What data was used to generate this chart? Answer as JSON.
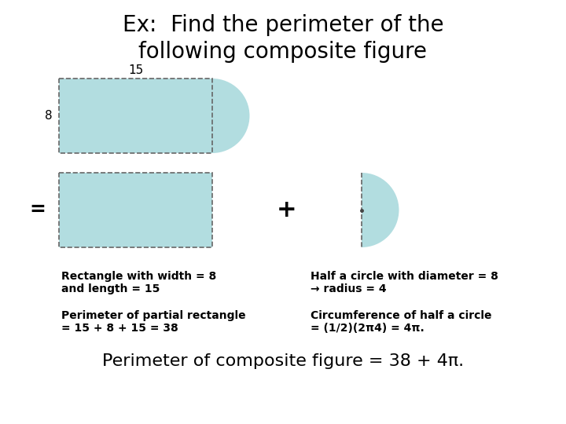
{
  "title_line1": "Ex:  Find the perimeter of the",
  "title_line2": "following composite figure",
  "label_15": "15",
  "label_8": "8",
  "label_equals": "=",
  "label_plus": "+",
  "shape_fill": "#b2dde0",
  "dashed_color": "#666666",
  "text_rect1": "Rectangle with width = 8",
  "text_rect2": "and length = 15",
  "text_half1": "Half a circle with diameter = 8",
  "text_half2": "→ radius = 4",
  "text_perim1": "Perimeter of partial rectangle",
  "text_perim2": "= 15 + 8 + 15 = 38",
  "text_circ1": "Circumference of half a circle",
  "text_circ2": "= (1/2)(2π4) = 4π.",
  "text_final": "Perimeter of composite figure = 38 + 4π.",
  "bg_color": "#ffffff",
  "title_fontsize": 20,
  "label_fontsize": 11,
  "ann_fontsize": 10,
  "final_fontsize": 16
}
